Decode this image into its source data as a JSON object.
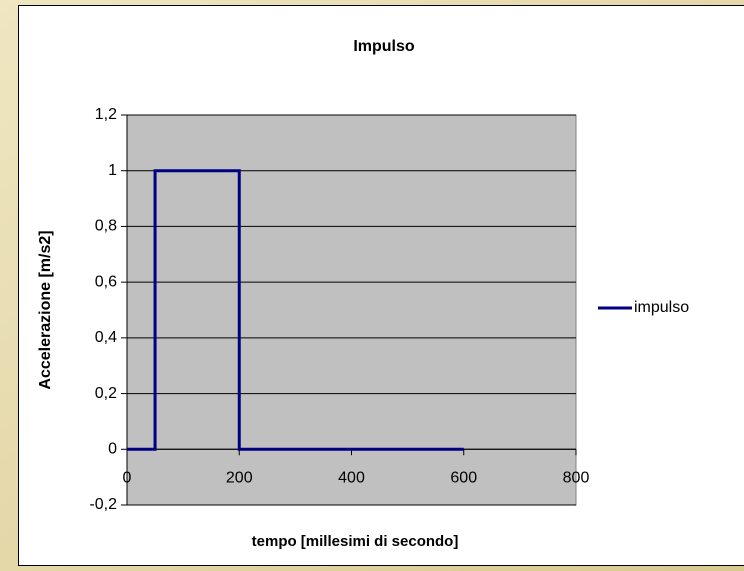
{
  "chart_data": {
    "type": "line",
    "title": "Impulso",
    "x_label": "tempo [millesimi di secondo]",
    "y_label": "Accelerazione [m/s2]",
    "x": [
      0,
      50,
      50,
      200,
      200,
      600
    ],
    "series": [
      {
        "name": "impulso",
        "color": "#000080",
        "values": [
          0,
          0,
          1,
          1,
          0,
          0
        ]
      }
    ],
    "xlim": [
      0,
      800
    ],
    "xticks": [
      0,
      200,
      400,
      600,
      800
    ],
    "ylim": [
      -0.2,
      1.2
    ],
    "yticks": [
      {
        "value": -0.2,
        "label": "-0,2"
      },
      0,
      {
        "value": 0.2,
        "label": "0,2"
      },
      {
        "value": 0.4,
        "label": "0,4"
      },
      {
        "value": 0.6,
        "label": "0,6"
      },
      {
        "value": 0.8,
        "label": "0,8"
      },
      1,
      {
        "value": 1.2,
        "label": "1,2"
      }
    ],
    "grid": true,
    "legend": "right"
  }
}
